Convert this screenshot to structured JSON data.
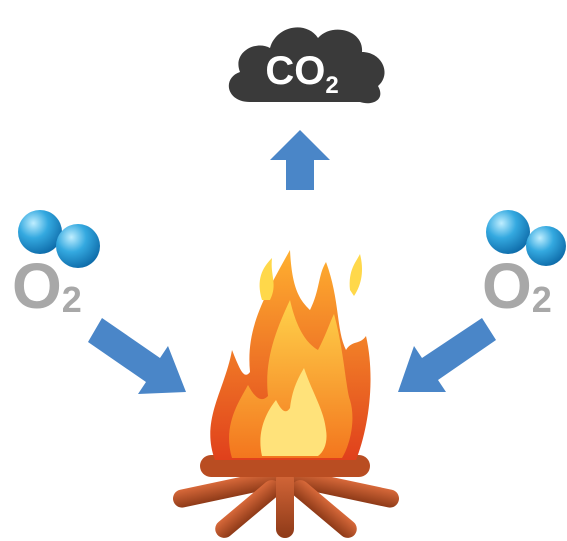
{
  "nodes": [
    {
      "label": "CO",
      "subscript": "2"
    },
    {
      "label": "O",
      "subscript": "2"
    },
    {
      "label": "O",
      "subscript": "2"
    }
  ]
}
